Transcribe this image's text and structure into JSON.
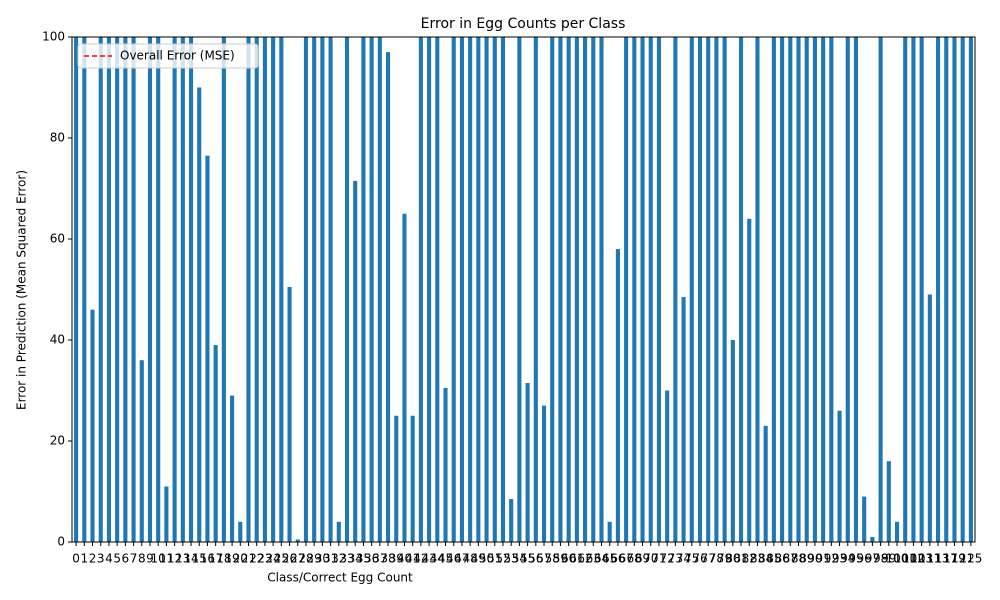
{
  "chart_data": {
    "type": "bar",
    "title": "Error in Egg Counts per Class",
    "xlabel": "Class/Correct Egg Count",
    "ylabel": "Error in Prediction (Mean Squared Error)",
    "categories": [
      0,
      1,
      2,
      3,
      4,
      5,
      6,
      7,
      8,
      9,
      10,
      11,
      12,
      13,
      14,
      15,
      16,
      17,
      18,
      19,
      20,
      21,
      22,
      23,
      24,
      25,
      26,
      27,
      28,
      29,
      30,
      31,
      32,
      33,
      34,
      35,
      36,
      37,
      38,
      39,
      40,
      41,
      42,
      43,
      44,
      45,
      46,
      47,
      48,
      49,
      50,
      51,
      52,
      53,
      54,
      55,
      56,
      57,
      58,
      59,
      60,
      61,
      62,
      63,
      64,
      65,
      66,
      67,
      68,
      69,
      70,
      71,
      72,
      73,
      74,
      75,
      76,
      77,
      78,
      79,
      80,
      81,
      82,
      83,
      84,
      85,
      86,
      87,
      88,
      89,
      90,
      91,
      92,
      93,
      94,
      95,
      96,
      97,
      98,
      99,
      100,
      101,
      102,
      103,
      111,
      113,
      117,
      119,
      121,
      125
    ],
    "values": [
      100,
      100,
      46,
      100,
      100,
      100,
      100,
      100,
      36,
      100,
      100,
      11,
      100,
      100,
      100,
      90,
      76.5,
      39,
      100,
      29,
      4,
      100,
      100,
      100,
      100,
      100,
      50.5,
      0.5,
      100,
      100,
      100,
      100,
      4,
      100,
      71.5,
      100,
      100,
      100,
      97,
      25,
      65,
      25,
      100,
      100,
      100,
      30.5,
      100,
      100,
      100,
      100,
      100,
      100,
      100,
      8.5,
      100,
      31.5,
      100,
      27,
      100,
      100,
      100,
      100,
      100,
      100,
      100,
      4,
      58,
      100,
      100,
      100,
      100,
      100,
      30,
      100,
      48.5,
      100,
      100,
      100,
      100,
      100,
      40,
      100,
      64,
      100,
      23,
      100,
      100,
      100,
      100,
      100,
      100,
      100,
      100,
      26,
      100,
      100,
      9,
      1,
      100,
      16,
      4,
      100,
      100,
      100,
      49,
      100,
      100,
      100,
      100,
      100
    ],
    "color": "#1f77b4",
    "ylim": [
      0,
      100
    ],
    "yticks": [
      0,
      20,
      40,
      60,
      80,
      100
    ],
    "grid": false,
    "legend": {
      "position": "upper left",
      "entries": [
        {
          "name": "Overall Error (MSE)",
          "color": "red",
          "style": "dashed"
        }
      ]
    }
  }
}
